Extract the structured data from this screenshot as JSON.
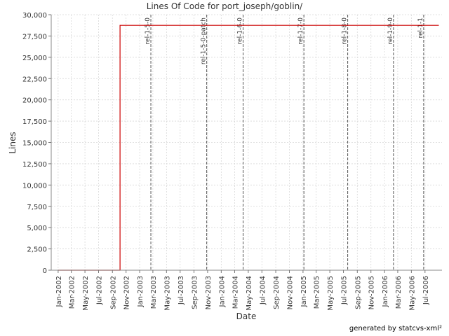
{
  "chart_data": {
    "type": "line",
    "title": "Lines Of Code for port_joseph/goblin/",
    "xlabel": "Date",
    "ylabel": "Lines",
    "ylim": [
      0,
      30000
    ],
    "xlim": [
      "2001-12-01",
      "2006-09-15"
    ],
    "grid": true,
    "y_ticks": [
      0,
      2500,
      5000,
      7500,
      10000,
      12500,
      15000,
      17500,
      20000,
      22500,
      25000,
      27500,
      30000
    ],
    "y_tick_labels": [
      "0",
      "2,500",
      "5,000",
      "7,500",
      "10,000",
      "12,500",
      "15,000",
      "17,500",
      "20,000",
      "22,500",
      "25,000",
      "27,500",
      "30,000"
    ],
    "x_ticks": [
      {
        "date": "2002-01-01",
        "label": "Jan-2002"
      },
      {
        "date": "2002-03-01",
        "label": "Mar-2002"
      },
      {
        "date": "2002-05-01",
        "label": "May-2002"
      },
      {
        "date": "2002-07-01",
        "label": "Jul-2002"
      },
      {
        "date": "2002-09-01",
        "label": "Sep-2002"
      },
      {
        "date": "2002-11-01",
        "label": "Nov-2002"
      },
      {
        "date": "2003-01-01",
        "label": "Jan-2003"
      },
      {
        "date": "2003-03-01",
        "label": "Mar-2003"
      },
      {
        "date": "2003-05-01",
        "label": "May-2003"
      },
      {
        "date": "2003-07-01",
        "label": "Jul-2003"
      },
      {
        "date": "2003-09-01",
        "label": "Sep-2003"
      },
      {
        "date": "2003-11-01",
        "label": "Nov-2003"
      },
      {
        "date": "2004-01-01",
        "label": "Jan-2004"
      },
      {
        "date": "2004-03-01",
        "label": "Mar-2004"
      },
      {
        "date": "2004-05-01",
        "label": "May-2004"
      },
      {
        "date": "2004-07-01",
        "label": "Jul-2004"
      },
      {
        "date": "2004-09-01",
        "label": "Sep-2004"
      },
      {
        "date": "2004-11-01",
        "label": "Nov-2004"
      },
      {
        "date": "2005-01-01",
        "label": "Jan-2005"
      },
      {
        "date": "2005-03-01",
        "label": "Mar-2005"
      },
      {
        "date": "2005-05-01",
        "label": "May-2005"
      },
      {
        "date": "2005-07-01",
        "label": "Jul-2005"
      },
      {
        "date": "2005-09-01",
        "label": "Sep-2005"
      },
      {
        "date": "2005-11-01",
        "label": "Nov-2005"
      },
      {
        "date": "2006-01-01",
        "label": "Jan-2006"
      },
      {
        "date": "2006-03-01",
        "label": "Mar-2006"
      },
      {
        "date": "2006-05-01",
        "label": "May-2006"
      },
      {
        "date": "2006-07-01",
        "label": "Jul-2006"
      }
    ],
    "series": [
      {
        "color": "#cc0000",
        "points": [
          {
            "x": "2002-01-01",
            "y": 0
          },
          {
            "x": "2002-10-05",
            "y": 0
          },
          {
            "x": "2002-10-05",
            "y": 28750
          },
          {
            "x": "2006-09-01",
            "y": 28750
          }
        ]
      }
    ],
    "markers": [
      {
        "date": "2003-02-20",
        "label": "rel-1-5-0"
      },
      {
        "date": "2003-10-28",
        "label": "rel-1-5-0-patch"
      },
      {
        "date": "2004-04-08",
        "label": "rel-1-6-0"
      },
      {
        "date": "2005-01-05",
        "label": "rel-1-7-0"
      },
      {
        "date": "2005-07-20",
        "label": "rel-1-8-0"
      },
      {
        "date": "2006-02-10",
        "label": "rel-1-9-0"
      },
      {
        "date": "2006-06-25",
        "label": "rel-1-1"
      }
    ],
    "marker_color": "#555555"
  },
  "footer": "generated by statcvs-xml²"
}
